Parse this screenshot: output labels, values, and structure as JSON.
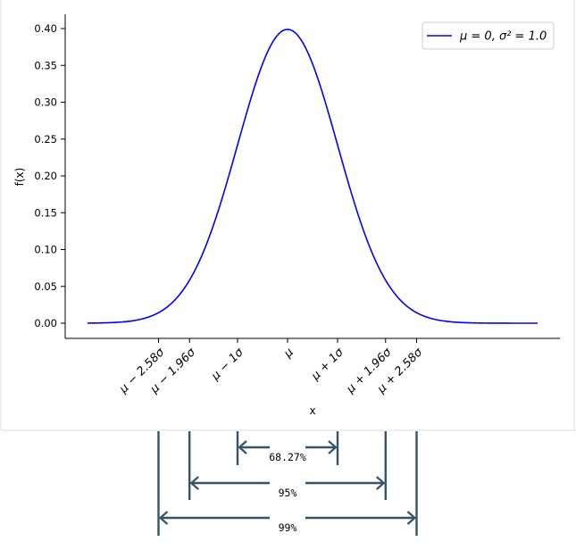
{
  "chart_data": {
    "type": "line",
    "xlabel": "x",
    "ylabel": "f(x)",
    "xlim": [
      -4.5,
      5.3
    ],
    "ylim": [
      -0.02,
      0.42
    ],
    "y_ticks": [
      "0.00",
      "0.05",
      "0.10",
      "0.15",
      "0.20",
      "0.25",
      "0.30",
      "0.35",
      "0.40"
    ],
    "y_tick_values": [
      0.0,
      0.05,
      0.1,
      0.15,
      0.2,
      0.25,
      0.3,
      0.35,
      0.4
    ],
    "x_ticks": [
      {
        "label": "μ − 2.58σ",
        "value": -2.58
      },
      {
        "label": "μ − 1.96σ",
        "value": -1.96
      },
      {
        "label": "μ − 1σ",
        "value": -1
      },
      {
        "label": "μ",
        "value": 0
      },
      {
        "label": "μ + 1σ",
        "value": 1
      },
      {
        "label": "μ + 1.96σ",
        "value": 1.96
      },
      {
        "label": "μ + 2.58σ",
        "value": 2.58
      }
    ],
    "series": [
      {
        "name": "μ = 0, σ² = 1.0",
        "mu": 0,
        "variance": 1.0,
        "x_range": [
          -4.0,
          5.0
        ],
        "color": "#0000ff"
      }
    ],
    "legend_position": "top-right",
    "intervals": [
      {
        "label": "68.27%",
        "from": -1,
        "to": 1
      },
      {
        "label": "95%",
        "from": -1.96,
        "to": 1.96
      },
      {
        "label": "99%",
        "from": -2.58,
        "to": 2.58
      }
    ],
    "interval_color": "#35546a"
  }
}
